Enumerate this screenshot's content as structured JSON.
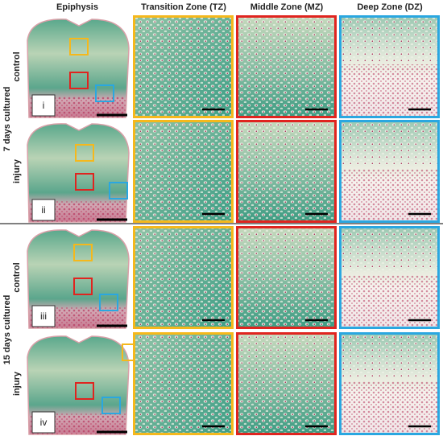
{
  "header": {
    "columns": [
      "Epiphysis",
      "Transition Zone (TZ)",
      "Middle Zone (MZ)",
      "Deep Zone (DZ)"
    ]
  },
  "groups": [
    {
      "label": "7 days cultured",
      "rows": [
        {
          "label": "control",
          "panel": "i"
        },
        {
          "label": "injury",
          "panel": "ii"
        }
      ]
    },
    {
      "label": "15 days cultured",
      "rows": [
        {
          "label": "control",
          "panel": "iii"
        },
        {
          "label": "injury",
          "panel": "iv"
        }
      ]
    }
  ]
}
